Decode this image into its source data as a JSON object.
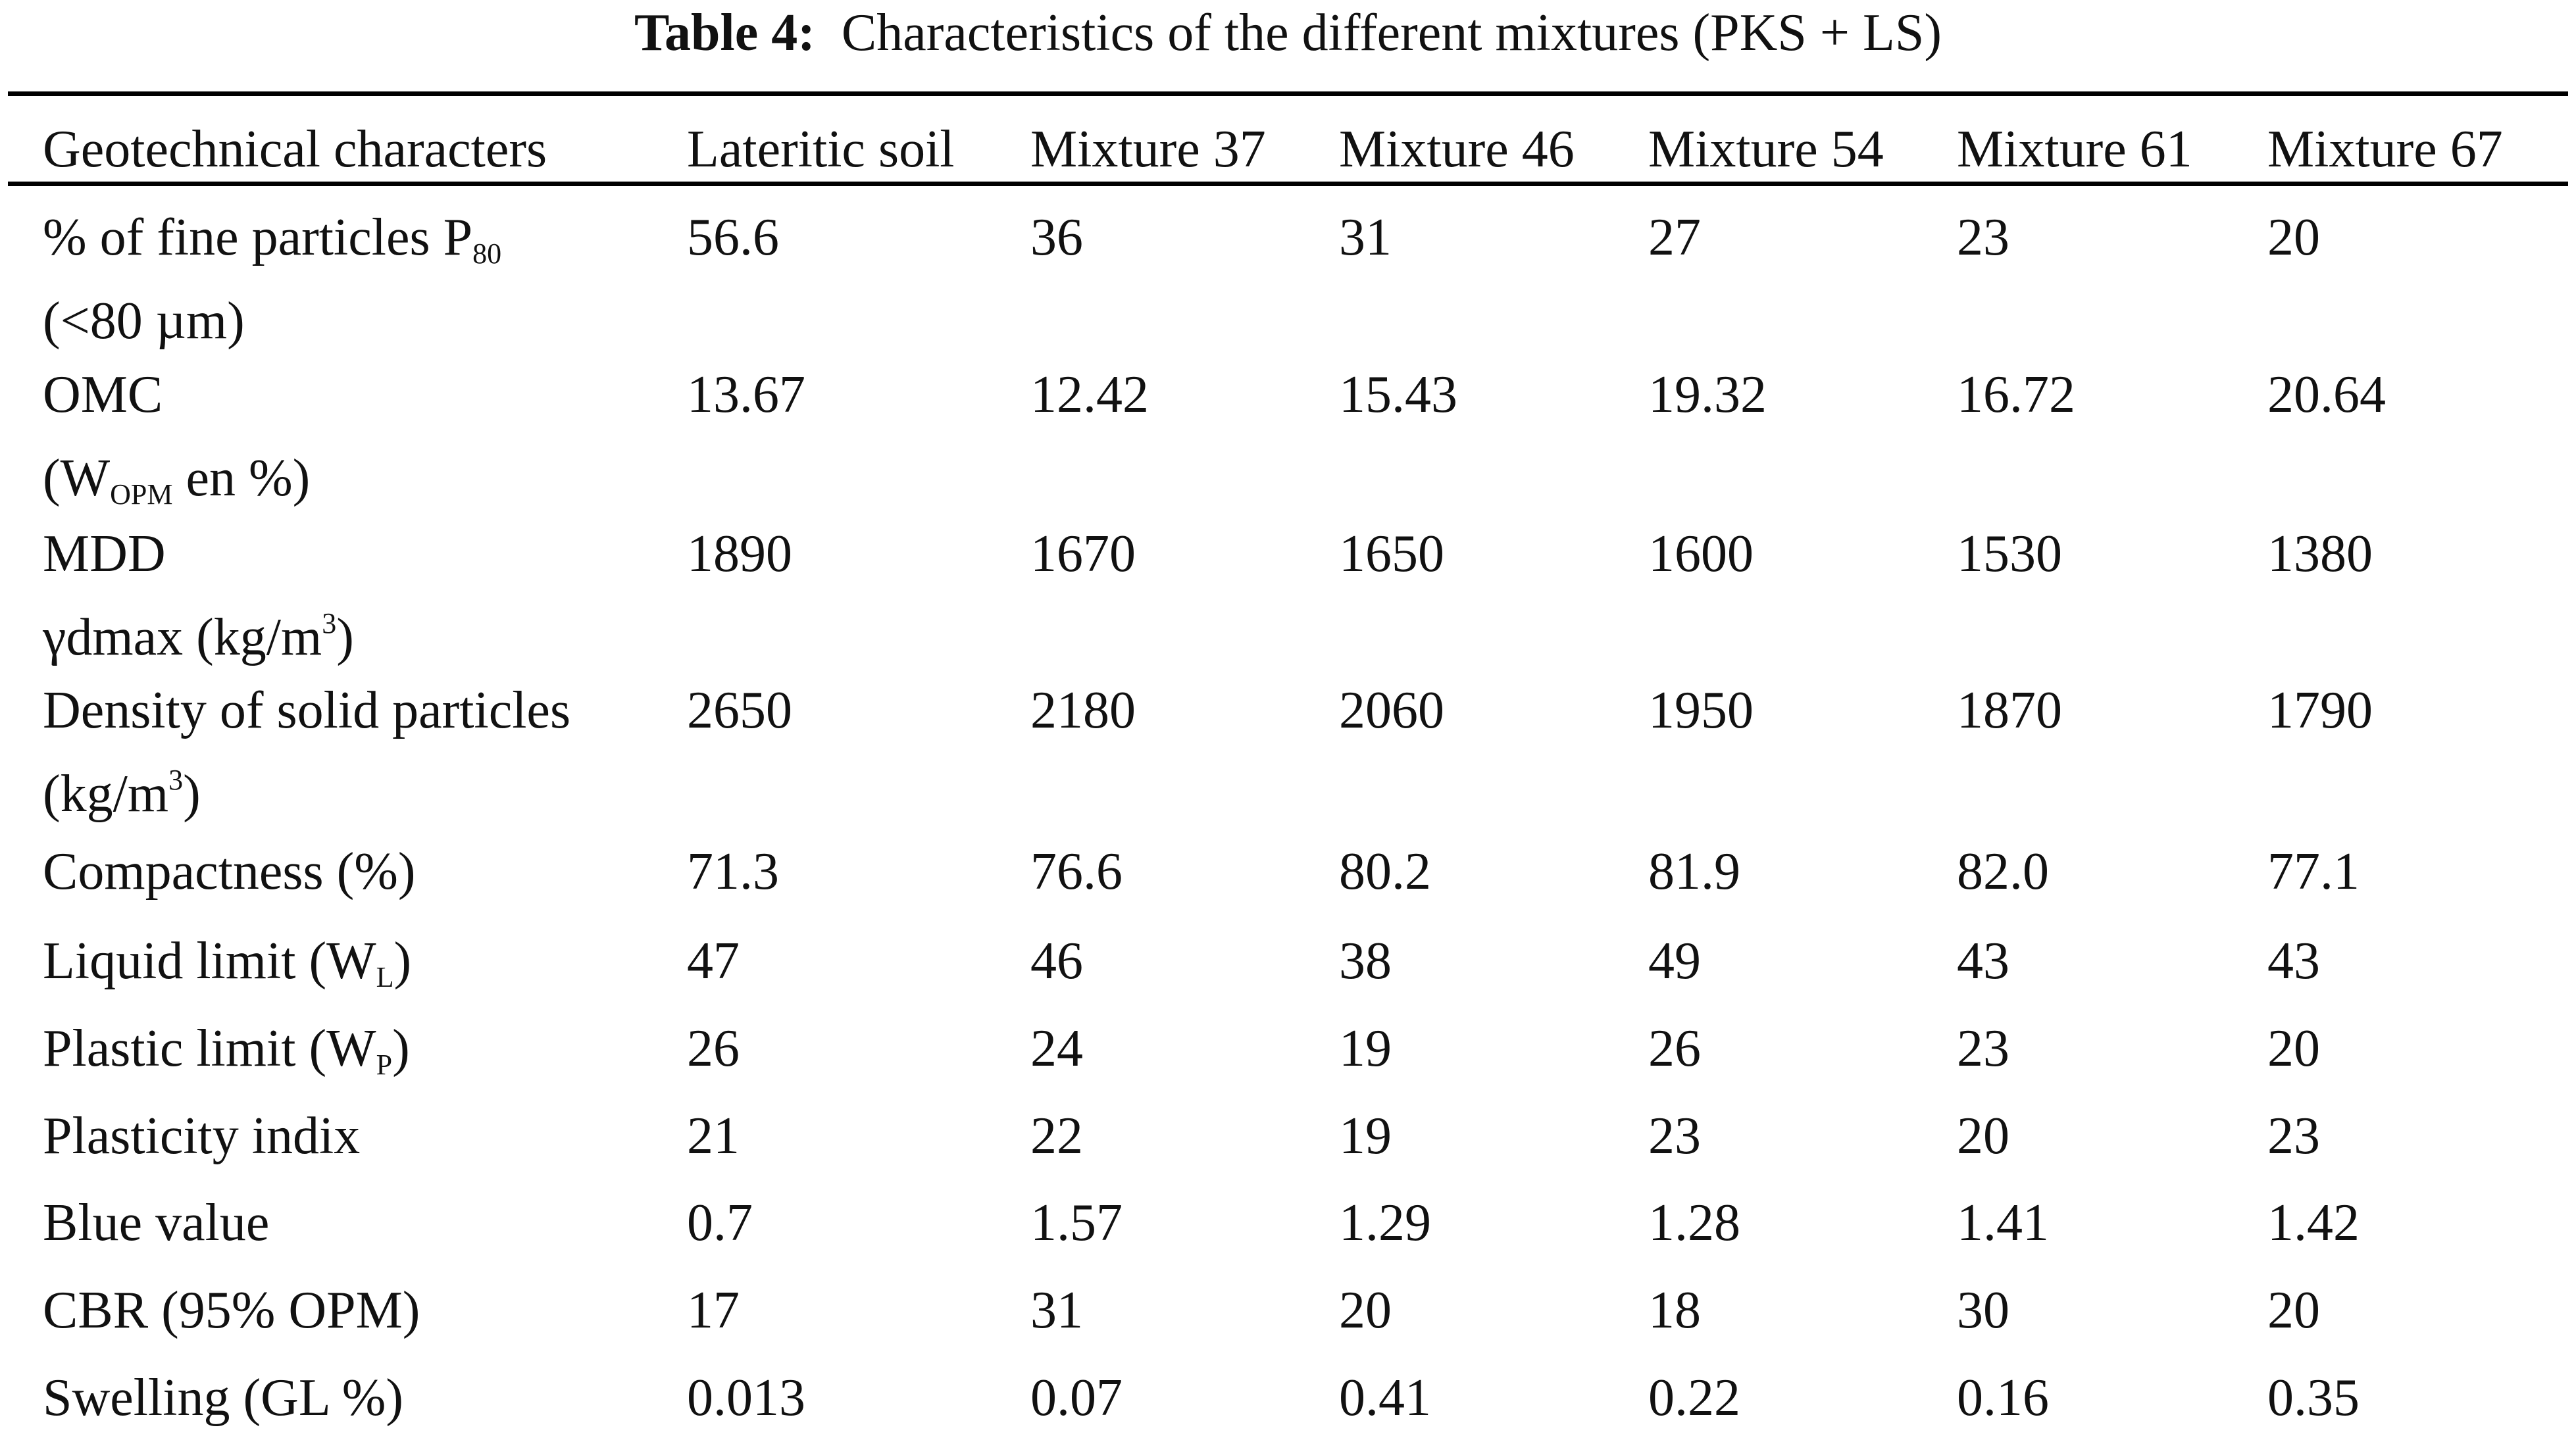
{
  "title": {
    "label": "Table 4:",
    "text": "  Characteristics of the different mixtures (PKS + LS)"
  },
  "table": {
    "headers": [
      "Geotechnical characters",
      "Lateritic soil",
      "Mixture 37",
      "Mixture 46",
      "Mixture 54",
      "Mixture 61",
      "Mixture 67"
    ],
    "rows": [
      {
        "label": [
          [
            {
              "t": "% of fine particles P"
            },
            {
              "t": "80",
              "sub": true
            }
          ],
          [
            {
              "t": "(<80 µm)"
            }
          ]
        ],
        "values": [
          "56.6",
          "36",
          "31",
          "27",
          "23",
          "20"
        ]
      },
      {
        "label": [
          [
            {
              "t": "OMC"
            }
          ],
          [
            {
              "t": "(W"
            },
            {
              "t": "OPM",
              "sub": true
            },
            {
              "t": " en %)"
            }
          ]
        ],
        "values": [
          "13.67",
          "12.42",
          "15.43",
          "19.32",
          "16.72",
          "20.64"
        ]
      },
      {
        "label": [
          [
            {
              "t": "MDD"
            }
          ],
          [
            {
              "t": "γdmax (kg/m"
            },
            {
              "t": "3",
              "sup": true
            },
            {
              "t": ")"
            }
          ]
        ],
        "values": [
          "1890",
          "1670",
          "1650",
          "1600",
          "1530",
          "1380"
        ]
      },
      {
        "label": [
          [
            {
              "t": "Density of solid particles"
            }
          ],
          [
            {
              "t": "(kg/m"
            },
            {
              "t": "3",
              "sup": true
            },
            {
              "t": ")"
            }
          ]
        ],
        "values": [
          "2650",
          "2180",
          "2060",
          "1950",
          "1870",
          "1790"
        ]
      },
      {
        "label": [
          [
            {
              "t": "Compactness (%)"
            }
          ]
        ],
        "values": [
          "71.3",
          "76.6",
          "80.2",
          "81.9",
          "82.0",
          "77.1"
        ]
      },
      {
        "label": [
          [
            {
              "t": "Liquid limit (W"
            },
            {
              "t": "L",
              "sub": true
            },
            {
              "t": ")"
            }
          ]
        ],
        "values": [
          "47",
          "46",
          "38",
          "49",
          "43",
          "43"
        ]
      },
      {
        "label": [
          [
            {
              "t": "Plastic limit (W"
            },
            {
              "t": "P",
              "sub": true
            },
            {
              "t": ")"
            }
          ]
        ],
        "values": [
          "26",
          "24",
          "19",
          "26",
          "23",
          "20"
        ]
      },
      {
        "label": [
          [
            {
              "t": "Plasticity indix"
            }
          ]
        ],
        "values": [
          "21",
          "22",
          "19",
          "23",
          "20",
          "23"
        ]
      },
      {
        "label": [
          [
            {
              "t": "Blue value"
            }
          ]
        ],
        "values": [
          "0.7",
          "1.57",
          "1.29",
          "1.28",
          "1.41",
          "1.42"
        ]
      },
      {
        "label": [
          [
            {
              "t": "CBR (95% OPM)"
            }
          ]
        ],
        "values": [
          "17",
          "31",
          "20",
          "18",
          "30",
          "20"
        ]
      },
      {
        "label": [
          [
            {
              "t": "Swelling (GL %)"
            }
          ]
        ],
        "values": [
          "0.013",
          "0.07",
          "0.41",
          "0.22",
          "0.16",
          "0.35"
        ]
      }
    ]
  }
}
